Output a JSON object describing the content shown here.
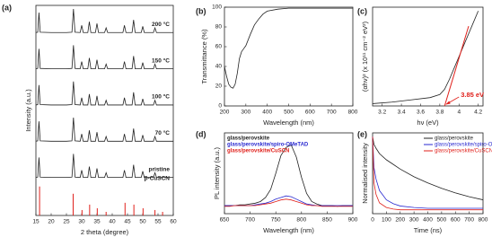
{
  "chart_data": [
    {
      "type": "line",
      "label": "(a)",
      "x_label": "2 theta (degree)",
      "y_label": "Intensity (a.u.)",
      "legend": "inline",
      "xlim": [
        15,
        60
      ],
      "ylim": [
        0,
        5.8
      ],
      "xticks": [
        15,
        20,
        25,
        30,
        35,
        40,
        45,
        50,
        55,
        60
      ],
      "x": [
        15,
        15.6,
        16,
        16.4,
        20,
        25,
        26.8,
        27.3,
        27.8,
        29.5,
        30,
        30.5,
        32,
        32.5,
        33,
        34.5,
        35,
        35.5,
        37.5,
        38,
        38.5,
        43.5,
        44,
        44.5,
        46.5,
        47,
        47.5,
        49.5,
        50,
        50.5,
        53.5,
        54,
        54.5,
        57,
        60
      ],
      "series": [
        {
          "name": "200 °C",
          "color": "#222222",
          "values": [
            5.05,
            5.06,
            5.6,
            5.06,
            5.05,
            5.05,
            5.06,
            5.7,
            5.06,
            5.05,
            5.25,
            5.05,
            5.05,
            5.35,
            5.05,
            5.05,
            5.3,
            5.05,
            5.05,
            5.18,
            5.05,
            5.05,
            5.25,
            5.05,
            5.05,
            5.4,
            5.05,
            5.05,
            5.22,
            5.05,
            5.05,
            5.18,
            5.05,
            5.05,
            5.05
          ]
        },
        {
          "name": "150 °C",
          "color": "#222222",
          "values": [
            4.05,
            4.06,
            4.6,
            4.06,
            4.05,
            4.05,
            4.06,
            4.7,
            4.06,
            4.05,
            4.25,
            4.05,
            4.05,
            4.35,
            4.05,
            4.05,
            4.3,
            4.05,
            4.05,
            4.18,
            4.05,
            4.05,
            4.25,
            4.05,
            4.05,
            4.4,
            4.05,
            4.05,
            4.22,
            4.05,
            4.05,
            4.18,
            4.05,
            4.05,
            4.05
          ]
        },
        {
          "name": "100 °C",
          "color": "#222222",
          "values": [
            3.05,
            3.06,
            3.6,
            3.06,
            3.05,
            3.05,
            3.06,
            3.7,
            3.06,
            3.05,
            3.25,
            3.05,
            3.05,
            3.35,
            3.05,
            3.05,
            3.3,
            3.05,
            3.05,
            3.18,
            3.05,
            3.05,
            3.25,
            3.05,
            3.05,
            3.4,
            3.05,
            3.05,
            3.22,
            3.05,
            3.05,
            3.18,
            3.05,
            3.05,
            3.05
          ]
        },
        {
          "name": "70 °C",
          "color": "#222222",
          "values": [
            2.05,
            2.06,
            2.6,
            2.06,
            2.05,
            2.05,
            2.06,
            2.7,
            2.06,
            2.05,
            2.25,
            2.05,
            2.05,
            2.35,
            2.05,
            2.05,
            2.3,
            2.05,
            2.05,
            2.18,
            2.05,
            2.05,
            2.25,
            2.05,
            2.05,
            2.4,
            2.05,
            2.05,
            2.22,
            2.05,
            2.05,
            2.18,
            2.05,
            2.05,
            2.05
          ]
        },
        {
          "name": "pristine",
          "color": "#222222",
          "values": [
            1.05,
            1.06,
            1.6,
            1.06,
            1.05,
            1.05,
            1.06,
            1.7,
            1.06,
            1.05,
            1.25,
            1.05,
            1.05,
            1.35,
            1.05,
            1.05,
            1.3,
            1.05,
            1.05,
            1.18,
            1.05,
            1.05,
            1.25,
            1.05,
            1.05,
            1.4,
            1.05,
            1.05,
            1.22,
            1.05,
            1.05,
            1.18,
            1.05,
            1.05,
            1.05
          ]
        },
        {
          "name": "β-CuSCN",
          "color": "#e0201b",
          "style": "stick",
          "x": [
            16.2,
            27.2,
            30.1,
            32.6,
            35.1,
            38,
            44.2,
            47.1,
            50.1,
            54,
            56.5
          ],
          "values": [
            0.8,
            0.6,
            0.15,
            0.3,
            0.2,
            0.1,
            0.35,
            0.3,
            0.2,
            0.15,
            0.1
          ]
        }
      ]
    },
    {
      "type": "line",
      "label": "(b)",
      "x_label": "Wavelength (nm)",
      "y_label": "Transmittance (%)",
      "xlim": [
        200,
        800
      ],
      "ylim": [
        0,
        100
      ],
      "xticks": [
        200,
        300,
        400,
        500,
        600,
        700,
        800
      ],
      "yticks": [
        0,
        20,
        40,
        60,
        80,
        100
      ],
      "x": [
        200,
        210,
        220,
        230,
        240,
        250,
        260,
        270,
        280,
        290,
        300,
        320,
        340,
        360,
        380,
        400,
        450,
        500,
        600,
        700,
        800
      ],
      "series": [
        {
          "color": "#222222",
          "values": [
            40,
            30,
            22,
            19,
            18,
            22,
            33,
            48,
            55,
            58,
            61,
            72,
            82,
            88,
            93,
            96,
            98,
            99,
            99,
            99,
            99
          ]
        }
      ]
    },
    {
      "type": "line",
      "label": "(c)",
      "x_label": "hν (eV)",
      "y_label": "(αhν)² (x 10¹¹ cm⁻² eV²)",
      "annotation": "3.85 eV",
      "xlim": [
        3.1,
        4.25
      ],
      "ylim": [
        0,
        13
      ],
      "xticks": [
        3.2,
        3.4,
        3.6,
        3.8,
        4.0,
        4.2
      ],
      "x": [
        3.1,
        3.3,
        3.5,
        3.7,
        3.8,
        3.85,
        3.9,
        3.95,
        4.0,
        4.05,
        4.1,
        4.15,
        4.2
      ],
      "series": [
        {
          "color": "#222222",
          "values": [
            0.3,
            0.5,
            0.8,
            1.1,
            1.5,
            2.2,
            3.5,
            5,
            6.5,
            8,
            9.5,
            11,
            12.5
          ]
        }
      ],
      "fit": {
        "color": "#e0201b",
        "x": [
          3.85,
          4.1
        ],
        "values": [
          0,
          10.5
        ]
      }
    },
    {
      "type": "line",
      "label": "(d)",
      "x_label": "Wavelength (nm)",
      "y_label": "PL intensity (a.u.)",
      "legend": "upper left",
      "xlim": [
        650,
        900
      ],
      "ylim": [
        0,
        1
      ],
      "xticks": [
        650,
        700,
        750,
        800,
        850,
        900
      ],
      "x": [
        650,
        660,
        670,
        680,
        690,
        700,
        710,
        720,
        730,
        740,
        750,
        760,
        770,
        780,
        790,
        800,
        810,
        820,
        830,
        840,
        850,
        860,
        870,
        880,
        890,
        900
      ],
      "series": [
        {
          "name": "glass/perovskite",
          "color": "#222222",
          "values": [
            0.1,
            0.1,
            0.1,
            0.11,
            0.11,
            0.12,
            0.13,
            0.15,
            0.2,
            0.3,
            0.5,
            0.72,
            0.82,
            0.85,
            0.7,
            0.45,
            0.25,
            0.15,
            0.12,
            0.1,
            0.1,
            0.1,
            0.09,
            0.1,
            0.1,
            0.1
          ]
        },
        {
          "name": "glass/perovskite/spiro-OMeTAD",
          "color": "#2a2ad0",
          "values": [
            0.1,
            0.1,
            0.1,
            0.1,
            0.1,
            0.1,
            0.11,
            0.12,
            0.13,
            0.15,
            0.18,
            0.2,
            0.22,
            0.21,
            0.18,
            0.15,
            0.12,
            0.11,
            0.1,
            0.1,
            0.1,
            0.1,
            0.1,
            0.1,
            0.1,
            0.1
          ]
        },
        {
          "name": "glass/perovskite/CuSCN",
          "color": "#e0201b",
          "values": [
            0.09,
            0.09,
            0.1,
            0.1,
            0.1,
            0.1,
            0.1,
            0.11,
            0.12,
            0.13,
            0.15,
            0.17,
            0.18,
            0.17,
            0.15,
            0.13,
            0.11,
            0.1,
            0.1,
            0.09,
            0.09,
            0.09,
            0.09,
            0.09,
            0.09,
            0.09
          ]
        }
      ]
    },
    {
      "type": "line",
      "label": "(e)",
      "x_label": "Time (ns)",
      "y_label": "Normalised intensity",
      "legend": "upper right",
      "xlim": [
        0,
        800
      ],
      "ylim": [
        0,
        1.05
      ],
      "xticks": [
        0,
        100,
        200,
        300,
        400,
        500,
        600,
        700,
        800
      ],
      "x": [
        0,
        10,
        25,
        50,
        100,
        150,
        200,
        300,
        400,
        500,
        600,
        700,
        800
      ],
      "series": [
        {
          "name": "glass/perovskite",
          "color": "#222222",
          "values": [
            1,
            0.9,
            0.85,
            0.78,
            0.7,
            0.64,
            0.58,
            0.48,
            0.4,
            0.33,
            0.27,
            0.22,
            0.18
          ]
        },
        {
          "name": "glass/perovskite/spiro-OMeTAD",
          "color": "#2a2ad0",
          "values": [
            1,
            0.6,
            0.45,
            0.3,
            0.18,
            0.13,
            0.1,
            0.08,
            0.07,
            0.07,
            0.07,
            0.07,
            0.07
          ]
        },
        {
          "name": "glass/perovskite/CuSCN",
          "color": "#e0201b",
          "values": [
            1,
            0.4,
            0.25,
            0.14,
            0.08,
            0.06,
            0.05,
            0.05,
            0.05,
            0.05,
            0.05,
            0.05,
            0.05
          ]
        }
      ]
    }
  ]
}
